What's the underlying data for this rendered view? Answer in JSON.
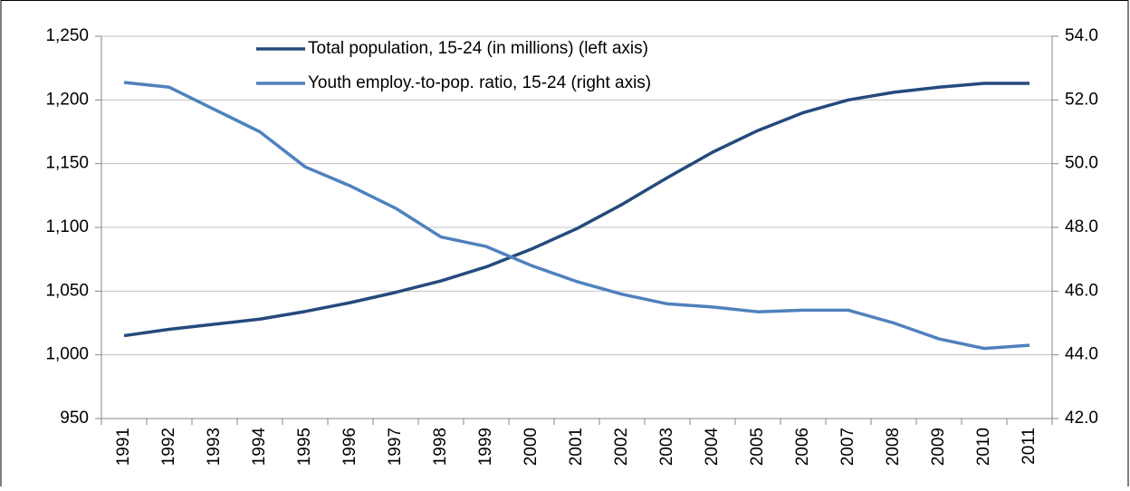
{
  "chart_data": {
    "type": "line",
    "categories": [
      "1991",
      "1992",
      "1993",
      "1994",
      "1995",
      "1996",
      "1997",
      "1998",
      "1999",
      "2000",
      "2001",
      "2002",
      "2003",
      "2004",
      "2005",
      "2006",
      "2007",
      "2008",
      "2009",
      "2010",
      "2011"
    ],
    "series": [
      {
        "name": "Total population, 15-24 (in millions) (left axis)",
        "color": "#254a7c",
        "values": [
          1015,
          1020,
          1024,
          1028,
          1034,
          1041,
          1049,
          1058,
          1069,
          1083,
          1099,
          1118,
          1139,
          1159,
          1176,
          1190,
          1200,
          1206,
          1210,
          1213,
          1213
        ]
      },
      {
        "name": "Youth employ.-to-pop. ratio, 15-24 (right axis)",
        "color": "#4f81bd",
        "axis": "y2",
        "values": [
          52.55,
          52.4,
          51.7,
          51.0,
          49.9,
          49.3,
          48.6,
          47.7,
          47.4,
          46.8,
          46.3,
          45.9,
          45.6,
          45.5,
          45.35,
          45.4,
          45.4,
          45.0,
          44.5,
          44.2,
          44.3
        ]
      }
    ],
    "ylim": [
      950,
      1250
    ],
    "yticks": [
      950,
      {
        "value": 1000,
        "label": "1,000"
      },
      {
        "value": 1050,
        "label": "1,050"
      },
      {
        "value": 1100,
        "label": "1,100"
      },
      {
        "value": 1150,
        "label": "1,150"
      },
      {
        "value": 1200,
        "label": "1,200"
      },
      {
        "value": 1250,
        "label": "1,250"
      }
    ],
    "y2lim": [
      42,
      54
    ],
    "y2ticks": [
      {
        "value": 42,
        "label": "42.0"
      },
      {
        "value": 44,
        "label": "44.0"
      },
      {
        "value": 46,
        "label": "46.0"
      },
      {
        "value": 48,
        "label": "48.0"
      },
      {
        "value": 50,
        "label": "50.0"
      },
      {
        "value": 52,
        "label": "52.0"
      },
      {
        "value": 54,
        "label": "54.0"
      }
    ],
    "grid": true
  }
}
